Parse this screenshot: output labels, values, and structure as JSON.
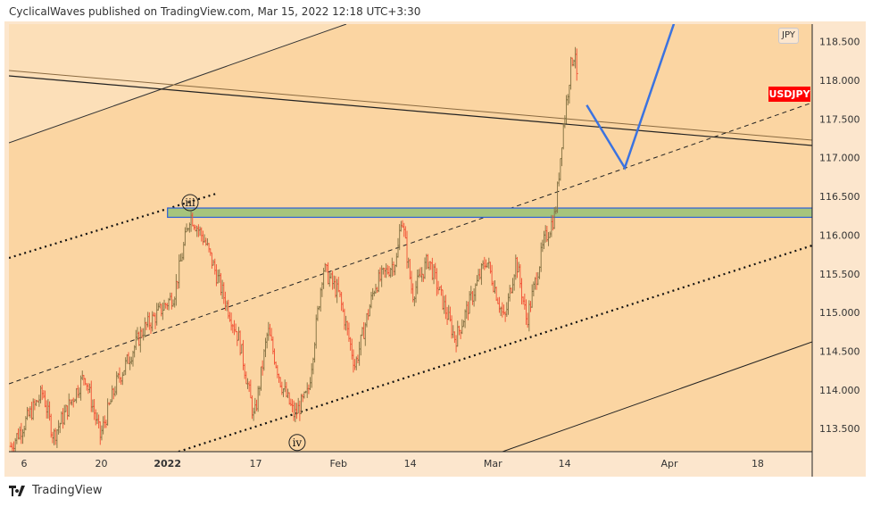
{
  "header": {
    "text": "CyclicalWaves published on TradingView.com, Mar 15, 2022 12:18 UTC+3:30"
  },
  "symbol": {
    "label": "USDJPY",
    "currency": "JPY"
  },
  "footer": {
    "brand": "TradingView"
  },
  "colors": {
    "up": "#8a7748",
    "down": "#f25a3c",
    "zone": "#a6c47c",
    "zone_border": "#2c5fd8",
    "projection": "#3b73e0"
  },
  "chart_data": {
    "type": "ohlc",
    "title": "USDJPY",
    "ylim": [
      113.25,
      118.72
    ],
    "xlim_days_from_dec6": [
      -2.6,
      143
    ],
    "y_ticks": [
      "118.500",
      "118.000",
      "117.500",
      "117.000",
      "116.500",
      "116.000",
      "115.500",
      "115.000",
      "114.500",
      "114.000",
      "113.500"
    ],
    "y_tick_values": [
      118.5,
      118,
      117.5,
      117,
      116.5,
      116,
      115.5,
      115,
      114.5,
      114,
      113.5
    ],
    "x_ticks": [
      {
        "label": "6",
        "day": 0
      },
      {
        "label": "20",
        "day": 14
      },
      {
        "label": "2022",
        "day": 26
      },
      {
        "label": "17",
        "day": 42
      },
      {
        "label": "Feb",
        "day": 57
      },
      {
        "label": "14",
        "day": 70
      },
      {
        "label": "Mar",
        "day": 85
      },
      {
        "label": "14",
        "day": 98
      },
      {
        "label": "Apr",
        "day": 117
      },
      {
        "label": "18",
        "day": 133
      }
    ],
    "price_path": [
      [
        -2.4,
        113.27
      ],
      [
        3.4,
        113.97
      ],
      [
        5.3,
        113.4
      ],
      [
        11,
        114.2
      ],
      [
        13.8,
        113.4
      ],
      [
        16.7,
        114.08
      ],
      [
        21.5,
        114.77
      ],
      [
        27.2,
        115.23
      ],
      [
        30.1,
        116.27
      ],
      [
        32.8,
        115.92
      ],
      [
        36.1,
        115.23
      ],
      [
        39,
        114.65
      ],
      [
        41.7,
        113.62
      ],
      [
        44.2,
        114.77
      ],
      [
        46.6,
        114.08
      ],
      [
        49,
        113.67
      ],
      [
        51.5,
        113.96
      ],
      [
        54.2,
        115.58
      ],
      [
        57.1,
        115.23
      ],
      [
        60,
        114.31
      ],
      [
        63.6,
        115.35
      ],
      [
        67.6,
        115.69
      ],
      [
        68.4,
        116.27
      ],
      [
        70.4,
        115.23
      ],
      [
        73.3,
        115.69
      ],
      [
        78.2,
        114.65
      ],
      [
        83.8,
        115.69
      ],
      [
        87.1,
        114.89
      ],
      [
        89.2,
        115.69
      ],
      [
        91.1,
        114.89
      ],
      [
        94.3,
        115.92
      ],
      [
        96.3,
        116.27
      ],
      [
        97.6,
        117.31
      ],
      [
        99.2,
        118.23
      ],
      [
        100,
        118.4
      ],
      [
        100.3,
        117.77
      ]
    ],
    "resistance_zone": {
      "from_day": 26,
      "low": 116.23,
      "high": 116.35
    },
    "projection": [
      [
        102,
        117.68
      ],
      [
        108.9,
        116.87
      ],
      [
        117.8,
        118.73
      ]
    ],
    "wave_labels": [
      {
        "text": "iii",
        "day": 30.1,
        "price": 116.42
      },
      {
        "text": "iv",
        "day": 49.5,
        "price": 113.32
      }
    ]
  }
}
